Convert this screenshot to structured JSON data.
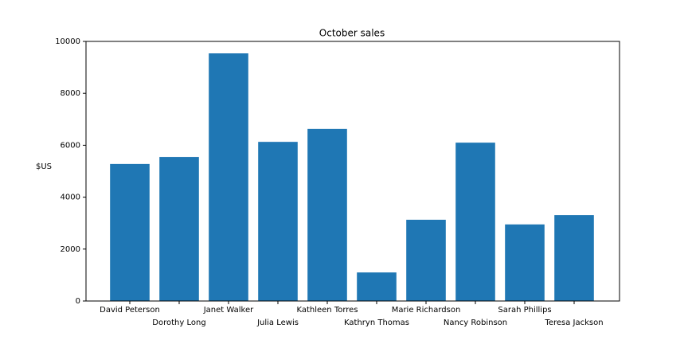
{
  "chart_data": {
    "type": "bar",
    "title": "October sales",
    "y_label": "$US",
    "categories": [
      "David Peterson",
      "Dorothy Long",
      "Janet Walker",
      "Julia Lewis",
      "Kathleen Torres",
      "Kathryn Thomas",
      "Marie Richardson",
      "Nancy Robinson",
      "Sarah Phillips",
      "Teresa Jackson"
    ],
    "values": [
      5280,
      5550,
      9540,
      6130,
      6630,
      1100,
      3130,
      6100,
      2950,
      3310
    ],
    "color": "#1f77b4",
    "ylim": [
      0,
      10000
    ],
    "yticks": [
      0,
      2000,
      4000,
      6000,
      8000,
      10000
    ],
    "grid": false
  }
}
